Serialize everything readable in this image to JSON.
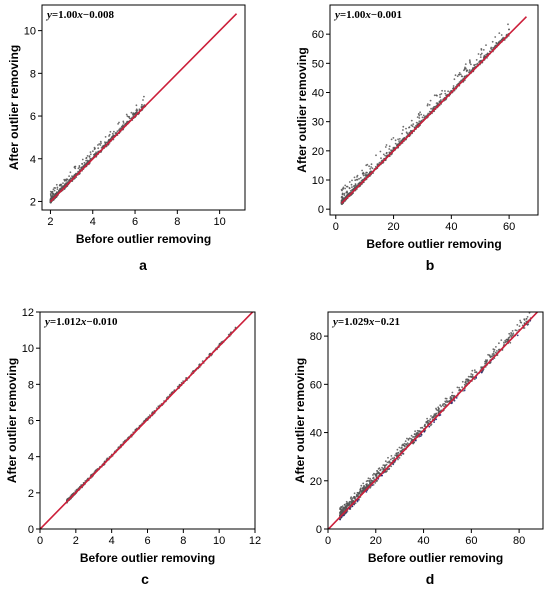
{
  "figure": {
    "colors": {
      "fit_line": "#cc1f3a",
      "points": "#555555",
      "points_d_low": "#1a1a6e",
      "frame": "#000000"
    }
  },
  "chart_data": [
    {
      "panel": "a",
      "type": "scatter",
      "equation": {
        "lead": "y",
        "rest": "=1.00",
        "var": "x",
        "tail": "−0.008"
      },
      "xlabel": "Before outlier removing",
      "ylabel": "After outlier removing",
      "xlim": [
        1.6,
        11.2
      ],
      "ylim": [
        1.6,
        11.2
      ],
      "xticks": [
        2,
        4,
        6,
        8,
        10
      ],
      "yticks": [
        2,
        4,
        6,
        8,
        10
      ],
      "fit": {
        "slope": 1.0,
        "intercept": -0.008,
        "x_range": [
          2,
          10.8
        ]
      },
      "scatter": {
        "x_range": [
          2,
          6.5
        ],
        "spread_up": 0.5,
        "spread_down": 0.15,
        "count": 600
      },
      "grid": false
    },
    {
      "panel": "b",
      "type": "scatter",
      "equation": {
        "lead": "y",
        "rest": "=1.00",
        "var": "x",
        "tail": "−0.001"
      },
      "xlabel": "Before outlier removing",
      "ylabel": "After outlier removing",
      "xlim": [
        -2,
        70
      ],
      "ylim": [
        -2,
        70
      ],
      "xticks": [
        0,
        20,
        40,
        60
      ],
      "yticks": [
        0,
        10,
        20,
        30,
        40,
        50,
        60
      ],
      "fit": {
        "slope": 1.0,
        "intercept": -0.001,
        "x_range": [
          2,
          66
        ]
      },
      "scatter": {
        "x_range": [
          2,
          60
        ],
        "spread_up": 5,
        "spread_down": 1,
        "count": 900
      },
      "grid": false
    },
    {
      "panel": "c",
      "type": "scatter",
      "equation": {
        "lead": "y",
        "rest": "=1.012",
        "var": "x",
        "tail": "−0.010"
      },
      "xlabel": "Before outlier removing",
      "ylabel": "After outlier removing",
      "xlim": [
        0,
        12
      ],
      "ylim": [
        0,
        12
      ],
      "xticks": [
        0,
        2,
        4,
        6,
        8,
        10,
        12
      ],
      "yticks": [
        0,
        2,
        4,
        6,
        8,
        10,
        12
      ],
      "fit": {
        "slope": 1.012,
        "intercept": -0.01,
        "x_range": [
          0,
          12
        ]
      },
      "scatter": {
        "x_range": [
          1.5,
          11
        ],
        "spread_up": 0.12,
        "spread_down": 0.12,
        "count": 500
      },
      "grid": false
    },
    {
      "panel": "d",
      "type": "scatter",
      "equation": {
        "lead": "y",
        "rest": "=1.029",
        "var": "x",
        "tail": "−0.21"
      },
      "xlabel": "Before outlier removing",
      "ylabel": "After outlier removing",
      "xlim": [
        0,
        90
      ],
      "ylim": [
        0,
        90
      ],
      "xticks": [
        0,
        20,
        40,
        60,
        80
      ],
      "yticks": [
        0,
        20,
        40,
        60,
        80
      ],
      "fit": {
        "slope": 1.029,
        "intercept": -0.21,
        "x_range": [
          0,
          90
        ]
      },
      "scatter": {
        "x_range": [
          5,
          85
        ],
        "spread_up": 4,
        "spread_down": 2.5,
        "count": 900
      },
      "grid": false
    }
  ]
}
